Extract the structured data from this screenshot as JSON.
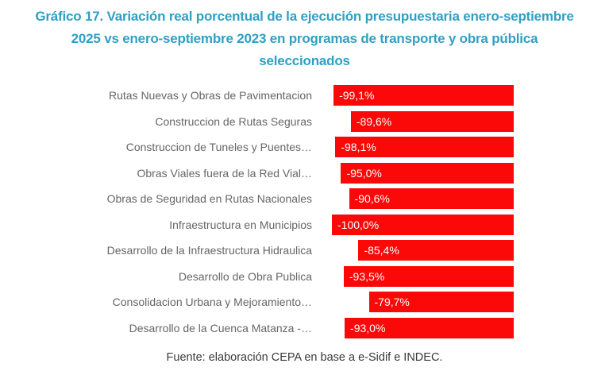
{
  "title": "Gráfico 17. Variación real porcentual de la ejecución presupuestaria enero-septiembre 2025 vs enero-septiembre 2023 en programas de transporte y obra pública seleccionados",
  "footer": "Fuente: elaboración CEPA en base a e-Sidif e INDEC.",
  "colors": {
    "title": "#2FA0C4",
    "bar": "#FB0909",
    "category_label": "#666666",
    "value_text": "#FFFFFF",
    "footer_text": "#3A3A3A",
    "background": "#FFFFFF"
  },
  "chart_data": {
    "type": "bar",
    "orientation": "horizontal",
    "title": "Gráfico 17. Variación real porcentual de la ejecución presupuestaria enero-septiembre 2025 vs enero-septiembre 2023 en programas de transporte y obra pública seleccionados",
    "xlabel": "",
    "ylabel": "",
    "xlim": [
      -100,
      0
    ],
    "zero_baseline": "right",
    "grid": false,
    "legend": "none",
    "categories": [
      "Rutas Nuevas y Obras de Pavimentacion",
      "Construccion de Rutas Seguras",
      "Construccion de Tuneles y Puentes…",
      "Obras Viales fuera de la Red Vial…",
      "Obras de Seguridad en Rutas Nacionales",
      "Infraestructura en Municipios",
      "Desarrollo de la Infraestructura Hidraulica",
      "Desarrollo de Obra Publica",
      "Consolidacion Urbana y Mejoramiento…",
      "Desarrollo de la Cuenca Matanza -…"
    ],
    "values": [
      -99.1,
      -89.6,
      -98.1,
      -95.0,
      -90.6,
      -100.0,
      -85.4,
      -93.5,
      -79.7,
      -93.0
    ],
    "value_labels": [
      "-99,1%",
      "-89,6%",
      "-98,1%",
      "-95,0%",
      "-90,6%",
      "-100,0%",
      "-85,4%",
      "-93,5%",
      "-79,7%",
      "-93,0%"
    ]
  }
}
